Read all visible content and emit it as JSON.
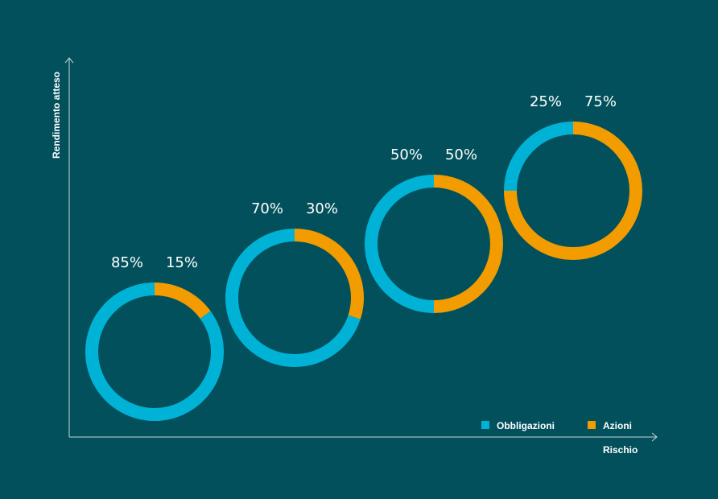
{
  "chart_data": {
    "type": "donut-scatter",
    "xlabel": "Rischio",
    "ylabel": "Rendimento atteso",
    "legend": [
      {
        "name": "Obbligazioni",
        "color": "#00b3d6"
      },
      {
        "name": "Azioni",
        "color": "#f29c00"
      }
    ],
    "series": [
      {
        "name": "Obbligazioni",
        "color": "#00b3d6",
        "values": [
          85,
          70,
          50,
          25
        ]
      },
      {
        "name": "Azioni",
        "color": "#f29c00",
        "values": [
          15,
          30,
          50,
          75
        ]
      }
    ],
    "portfolios": [
      {
        "obbligazioni": 85,
        "azioni": 15,
        "obbligazioni_label": "85%",
        "azioni_label": "15%"
      },
      {
        "obbligazioni": 70,
        "azioni": 30,
        "obbligazioni_label": "70%",
        "azioni_label": "30%"
      },
      {
        "obbligazioni": 50,
        "azioni": 50,
        "obbligazioni_label": "50%",
        "azioni_label": "50%"
      },
      {
        "obbligazioni": 25,
        "azioni": 75,
        "obbligazioni_label": "25%",
        "azioni_label": "75%"
      }
    ],
    "legend_placement": "bottom-right",
    "grid": false
  }
}
